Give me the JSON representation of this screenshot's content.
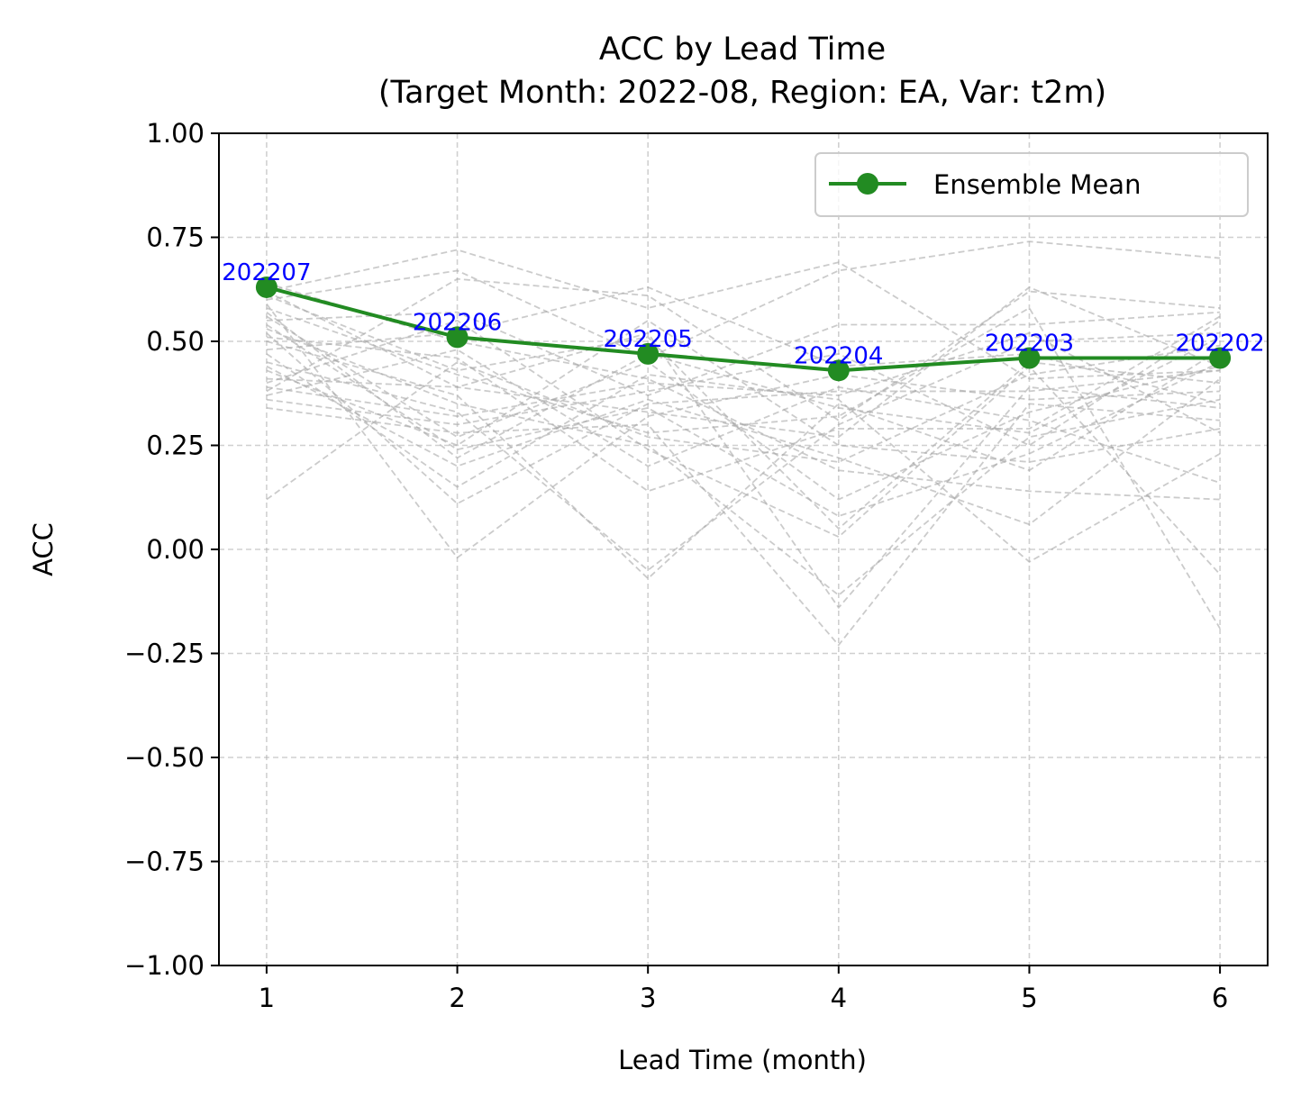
{
  "chart_data": {
    "type": "line",
    "title": "ACC by Lead Time",
    "subtitle": "(Target Month: 2022-08, Region: EA, Var: t2m)",
    "xlabel": "Lead Time (month)",
    "ylabel": "ACC",
    "x": [
      1,
      2,
      3,
      4,
      5,
      6
    ],
    "xlim": [
      0.75,
      6.25
    ],
    "ylim": [
      -1.0,
      1.0
    ],
    "xticks": [
      "1",
      "2",
      "3",
      "4",
      "5",
      "6"
    ],
    "yticks": [
      "1.00",
      "0.75",
      "0.50",
      "0.25",
      "0.00",
      "−0.25",
      "−0.50",
      "−0.75",
      "−1.00"
    ],
    "ytick_values": [
      1.0,
      0.75,
      0.5,
      0.25,
      0.0,
      -0.25,
      -0.5,
      -0.75,
      -1.0
    ],
    "grid": true,
    "legend_position": "top-right",
    "series": [
      {
        "name": "Ensemble Mean",
        "color": "#228b22",
        "values": [
          0.63,
          0.51,
          0.47,
          0.43,
          0.46,
          0.46
        ],
        "point_labels": [
          "202207",
          "202206",
          "202205",
          "202204",
          "202203",
          "202202"
        ],
        "label_color": "#0000ff"
      }
    ],
    "member_series_color": "#a9a9a9",
    "member_series": [
      [
        0.62,
        0.72,
        0.58,
        0.69,
        0.41,
        0.43
      ],
      [
        0.6,
        0.67,
        0.46,
        0.67,
        0.74,
        0.7
      ],
      [
        0.38,
        0.65,
        0.61,
        0.31,
        0.62,
        0.58
      ],
      [
        0.55,
        0.57,
        0.37,
        0.54,
        0.54,
        0.57
      ],
      [
        0.48,
        0.52,
        0.63,
        0.44,
        0.47,
        0.35
      ],
      [
        0.41,
        0.39,
        0.33,
        0.27,
        0.63,
        0.44
      ],
      [
        0.57,
        0.22,
        0.47,
        0.34,
        0.28,
        0.51
      ],
      [
        0.12,
        0.45,
        0.27,
        0.21,
        0.42,
        0.49
      ],
      [
        0.36,
        0.3,
        0.38,
        0.47,
        0.25,
        0.55
      ],
      [
        0.52,
        0.11,
        0.35,
        0.38,
        0.38,
        0.43
      ],
      [
        0.45,
        0.33,
        -0.05,
        0.3,
        0.5,
        0.52
      ],
      [
        0.61,
        0.43,
        0.51,
        0.05,
        0.45,
        0.4
      ],
      [
        0.37,
        0.48,
        0.2,
        0.39,
        0.31,
        0.16
      ],
      [
        0.59,
        -0.02,
        0.32,
        0.42,
        0.36,
        0.38
      ],
      [
        0.43,
        0.25,
        0.55,
        0.25,
        0.21,
        0.29
      ],
      [
        0.5,
        0.37,
        -0.07,
        0.35,
        0.19,
        0.48
      ],
      [
        0.34,
        0.28,
        0.3,
        -0.23,
        0.35,
        0.31
      ],
      [
        0.64,
        0.5,
        0.41,
        0.19,
        0.14,
        0.12
      ],
      [
        0.53,
        0.35,
        0.25,
        -0.11,
        0.27,
        0.36
      ],
      [
        0.47,
        0.15,
        0.42,
        0.36,
        -0.03,
        0.23
      ],
      [
        0.56,
        0.27,
        0.45,
        0.12,
        0.33,
        0.44
      ],
      [
        0.4,
        0.55,
        0.24,
        0.03,
        0.44,
        -0.06
      ],
      [
        0.58,
        0.42,
        0.28,
        0.32,
        0.58,
        -0.19
      ],
      [
        0.44,
        0.2,
        0.36,
        0.22,
        0.06,
        0.41
      ],
      [
        0.62,
        0.39,
        0.52,
        -0.14,
        0.39,
        0.34
      ],
      [
        0.51,
        0.46,
        0.14,
        0.29,
        0.29,
        0.56
      ],
      [
        0.39,
        0.32,
        0.4,
        0.37,
        0.52,
        0.28
      ],
      [
        0.54,
        0.24,
        0.34,
        0.08,
        0.23,
        0.45
      ]
    ]
  }
}
